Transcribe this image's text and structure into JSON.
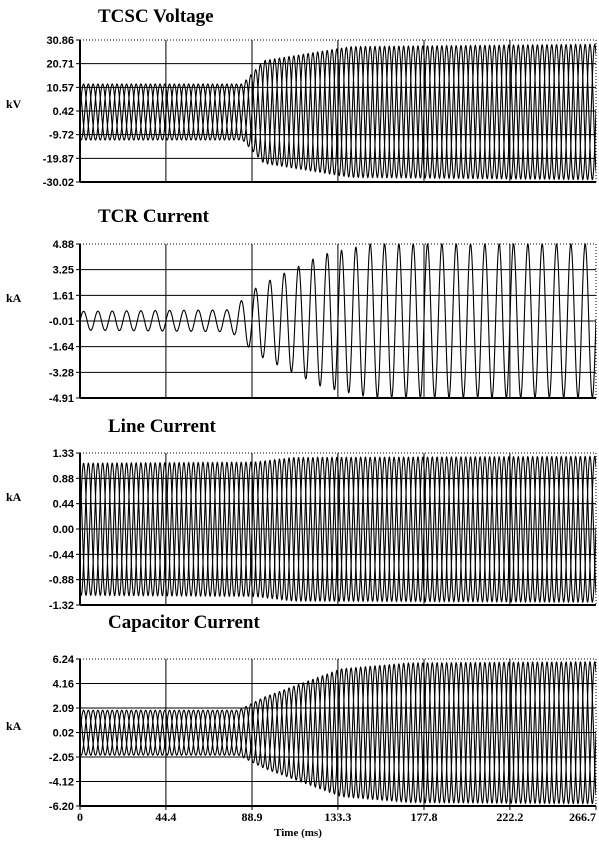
{
  "chart_data": [
    {
      "type": "line",
      "title": "TCSC Voltage",
      "ylabel": "kV",
      "yticks": [
        "30.86",
        "20.71",
        "10.57",
        "0.42",
        "-9.72",
        "-19.87",
        "-30.02"
      ],
      "ylim": [
        -30.02,
        30.86
      ],
      "xlim": [
        0,
        266.7
      ],
      "series": [
        {
          "phase_offset_deg": 0,
          "points": [
            [
              0,
              12
            ],
            [
              84,
              12
            ],
            [
              95,
              22
            ],
            [
              140,
              28
            ],
            [
              266.7,
              29
            ]
          ]
        },
        {
          "phase_offset_deg": 120,
          "points": [
            [
              0,
              12
            ],
            [
              84,
              12
            ],
            [
              95,
              22
            ],
            [
              140,
              28
            ],
            [
              266.7,
              29
            ]
          ]
        },
        {
          "phase_offset_deg": 240,
          "points": [
            [
              0,
              12
            ],
            [
              84,
              12
            ],
            [
              95,
              22
            ],
            [
              140,
              28
            ],
            [
              266.7,
              29
            ]
          ]
        }
      ]
    },
    {
      "type": "line",
      "title": "TCR Current",
      "ylabel": "kA",
      "yticks": [
        "4.88",
        "3.25",
        "1.61",
        "-0.01",
        "-1.64",
        "-3.28",
        "-4.91"
      ],
      "ylim": [
        -4.91,
        4.88
      ],
      "xlim": [
        0,
        266.7
      ],
      "series": [
        {
          "phase_offset_deg": 0,
          "points": [
            [
              0,
              0.6
            ],
            [
              78,
              0.7
            ],
            [
              92,
              2.2
            ],
            [
              125,
              4.2
            ],
            [
              150,
              4.88
            ],
            [
              266.7,
              4.88
            ]
          ]
        }
      ]
    },
    {
      "type": "line",
      "title": "Line Current",
      "ylabel": "kA",
      "yticks": [
        "1.33",
        "0.88",
        "0.44",
        "0.00",
        "-0.44",
        "-0.88",
        "-1.32"
      ],
      "ylim": [
        -1.32,
        1.33
      ],
      "xlim": [
        0,
        266.7
      ],
      "series": [
        {
          "phase_offset_deg": 0,
          "points": [
            [
              0,
              1.15
            ],
            [
              90,
              1.17
            ],
            [
              110,
              1.25
            ],
            [
              266.7,
              1.27
            ]
          ]
        },
        {
          "phase_offset_deg": 120,
          "points": [
            [
              0,
              1.15
            ],
            [
              90,
              1.17
            ],
            [
              110,
              1.25
            ],
            [
              266.7,
              1.27
            ]
          ]
        },
        {
          "phase_offset_deg": 240,
          "points": [
            [
              0,
              1.15
            ],
            [
              90,
              1.17
            ],
            [
              110,
              1.25
            ],
            [
              266.7,
              1.27
            ]
          ]
        }
      ]
    },
    {
      "type": "line",
      "title": "Capacitor Current",
      "ylabel": "kA",
      "yticks": [
        "6.24",
        "4.16",
        "2.09",
        "0.02",
        "-2.05",
        "-4.12",
        "-6.20"
      ],
      "ylim": [
        -6.2,
        6.24
      ],
      "xlim": [
        0,
        266.7
      ],
      "xticks": [
        "0",
        "44.4",
        "88.9",
        "133.3",
        "177.8",
        "222.2",
        "266.7"
      ],
      "xlabel": "Time (ms)",
      "series": [
        {
          "phase_offset_deg": 0,
          "points": [
            [
              0,
              1.9
            ],
            [
              82,
              1.9
            ],
            [
              95,
              3.0
            ],
            [
              135,
              5.4
            ],
            [
              170,
              5.9
            ],
            [
              266.7,
              6.0
            ]
          ]
        },
        {
          "phase_offset_deg": 120,
          "points": [
            [
              0,
              1.9
            ],
            [
              82,
              1.9
            ],
            [
              95,
              3.0
            ],
            [
              135,
              5.4
            ],
            [
              170,
              5.9
            ],
            [
              266.7,
              6.0
            ]
          ]
        },
        {
          "phase_offset_deg": 240,
          "points": [
            [
              0,
              1.9
            ],
            [
              82,
              1.9
            ],
            [
              95,
              3.0
            ],
            [
              135,
              5.4
            ],
            [
              170,
              5.9
            ],
            [
              266.7,
              6.0
            ]
          ]
        }
      ]
    }
  ]
}
